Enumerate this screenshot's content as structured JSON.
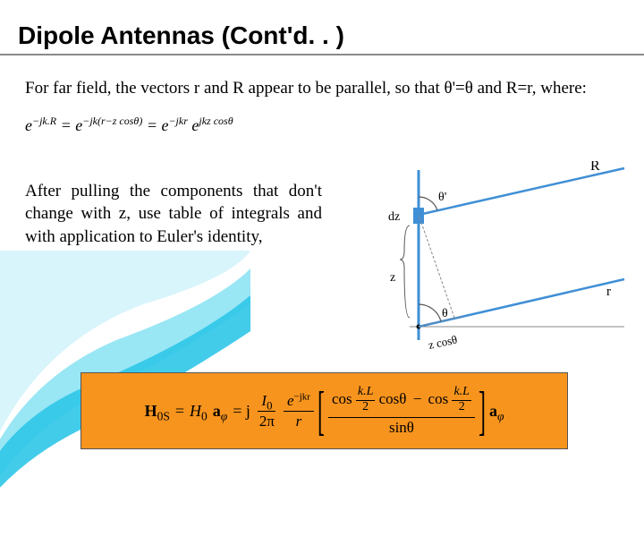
{
  "title": "Dipole Antennas (Cont'd. . )",
  "para1": "For far field, the vectors r and R appear to be parallel, so that θ'=θ and R=r, where:",
  "formula1_html": "e<sup>−jk.R</sup> = e<sup>−jk(r−z cosθ)</sup> = e<sup>−jkr</sup> e<sup>jkz cosθ</sup>",
  "para2": "After pulling the components that don't change with z, use table of integrals and with application to Euler's identity,",
  "diagram": {
    "labels": {
      "R": "R",
      "theta_p": "θ'",
      "dz": "dz",
      "z": "z",
      "theta": "θ",
      "r": "r",
      "zcos": "z cosθ"
    },
    "colors": {
      "line": "#3f8fd6",
      "fill": "#3f8fd6",
      "arc": "#555"
    }
  },
  "formula_box": {
    "bg": "#f7941e",
    "H_label": "H",
    "sub_0S": "0S",
    "eq": " = ",
    "H0": "H",
    "sub0": "0",
    "a_phi": "a",
    "phi": "φ",
    "j": " = j",
    "I0_num": "I",
    "I0_sub": "0",
    "twopi": "2π",
    "ejkr_num": "e",
    "ejkr_exp": "−jkr",
    "r": "r",
    "cos": "cos",
    "kL2_num": "k.L",
    "kL2_den": "2",
    "costheta": "cosθ",
    "minus": "−",
    "sintheta_den": "sinθ"
  },
  "swoosh_colors": [
    "#2fc6e8",
    "#7fe0f2",
    "#c7f1fa"
  ]
}
